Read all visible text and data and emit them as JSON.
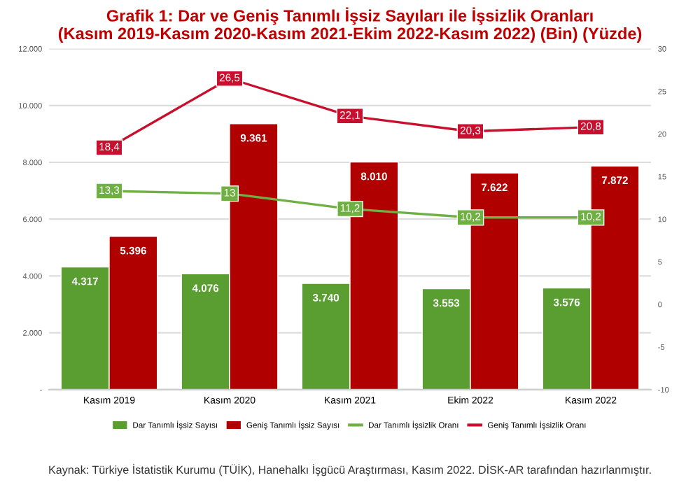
{
  "chart_data": {
    "type": "bar",
    "title": "Grafik 1: Dar ve Geniş Tanımlı İşsiz Sayıları ile İşsizlik Oranları\n(Kasım 2019-Kasım 2020-Kasım 2021-Ekim 2022-Kasım 2022) (Bin) (Yüzde)",
    "categories": [
      "Kasım 2019",
      "Kasım 2020",
      "Kasım 2021",
      "Ekim 2022",
      "Kasım 2022"
    ],
    "series": [
      {
        "name": "Dar Tanımlı İşsiz Sayısı",
        "color": "#5a9e32",
        "values": [
          4317,
          4076,
          3740,
          3553,
          3576
        ],
        "value_labels": [
          "4.317",
          "4.076",
          "3.740",
          "3.553",
          "3.576"
        ]
      },
      {
        "name": "Geniş Tanımlı İşsiz Sayısı",
        "color": "#b00000",
        "values": [
          5396,
          9361,
          8010,
          7622,
          7872
        ],
        "value_labels": [
          "5.396",
          "9.361",
          "8.010",
          "7.622",
          "7.872"
        ]
      },
      {
        "name": "Dar Tanımlı İşsizlik Oranı",
        "type": "line",
        "axis": "y2",
        "marker": "square",
        "color": "#6fb043",
        "values": [
          13.3,
          13,
          11.2,
          10.2,
          10.2
        ],
        "value_labels": [
          "13,3",
          "13",
          "11,2",
          "10,2",
          "10,2"
        ]
      },
      {
        "name": "Geniş Tanımlı İşsizlik Oranı",
        "type": "line",
        "axis": "y2",
        "marker": "square",
        "color": "#c8102e",
        "values": [
          18.4,
          26.5,
          22.1,
          20.3,
          20.8
        ],
        "value_labels": [
          "18,4",
          "26,5",
          "22,1",
          "20,3",
          "20,8"
        ]
      }
    ],
    "ylim": [
      0,
      12000
    ],
    "yticks": [
      {
        "value": 0,
        "label": "-"
      },
      {
        "value": 2000,
        "label": "2.000"
      },
      {
        "value": 4000,
        "label": "4.000"
      },
      {
        "value": 6000,
        "label": "6.000"
      },
      {
        "value": 8000,
        "label": "8.000"
      },
      {
        "value": 10000,
        "label": "10.000"
      },
      {
        "value": 12000,
        "label": "12.000"
      }
    ],
    "y2lim": [
      -10,
      30
    ],
    "y2ticks": [
      -10,
      -5,
      0,
      5,
      10,
      15,
      20,
      25,
      30
    ],
    "grid": "y",
    "legend": "bottom",
    "annotations": [
      "Kaynak: Türkiye İstatistik Kurumu (TÜİK), Hanehalkı İşgücü Araştırması, Kasım 2022. DİSK-AR tarafından hazırlanmıştır."
    ]
  }
}
